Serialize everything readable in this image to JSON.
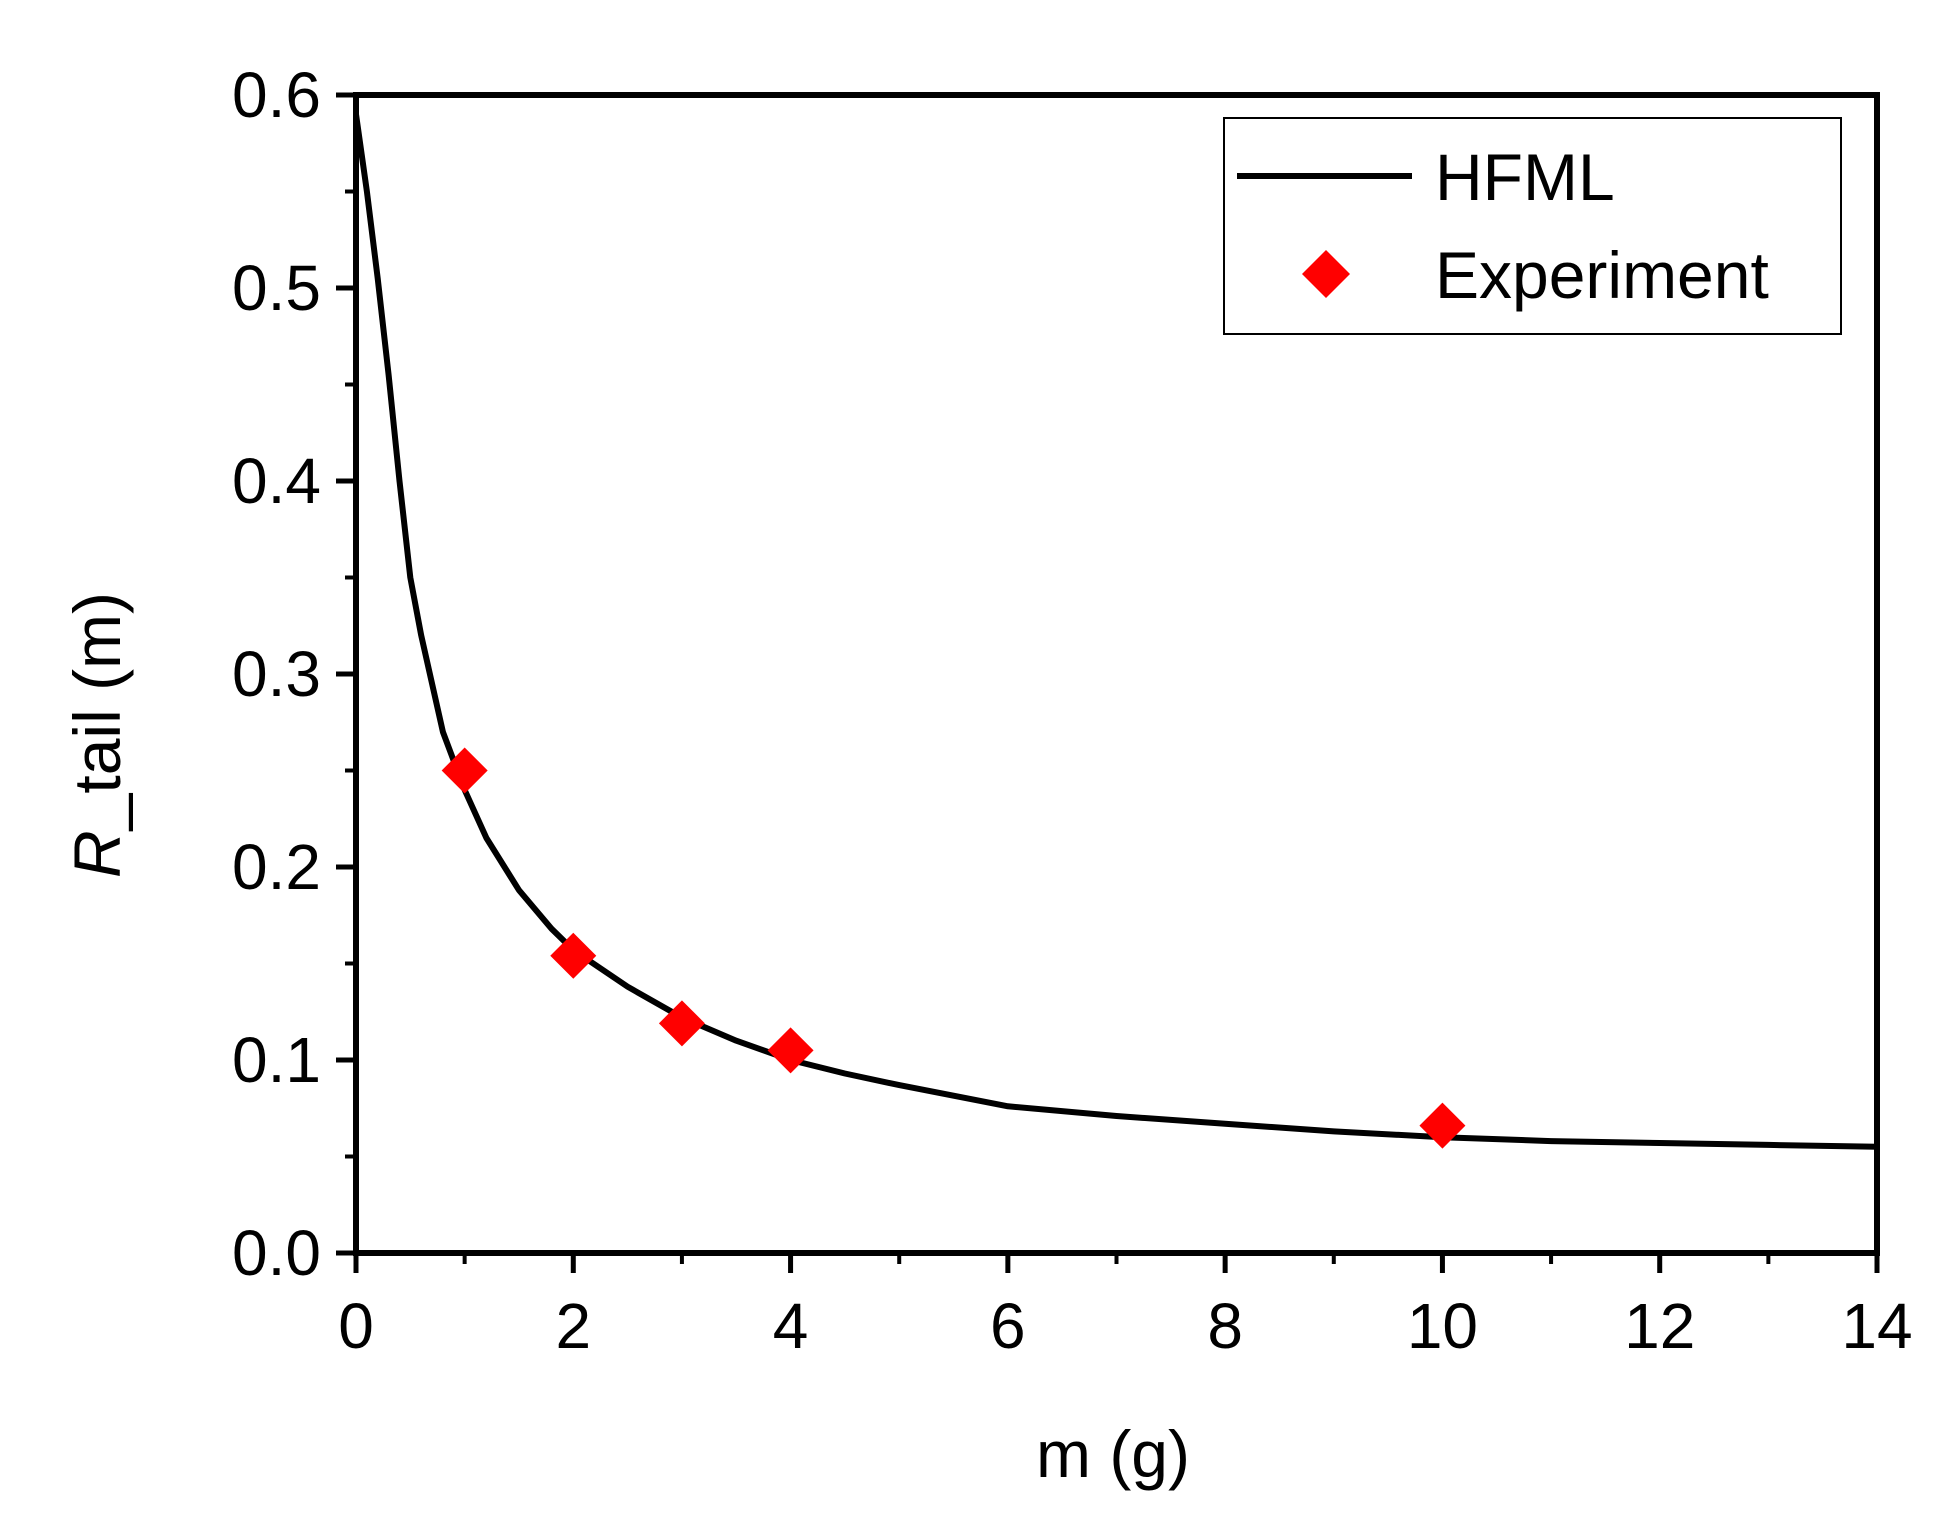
{
  "chart_data": {
    "type": "line",
    "xlabel": "m (g)",
    "ylabel_italic": "R",
    "ylabel_rest": "_tail (m)",
    "xlim": [
      0,
      14
    ],
    "ylim": [
      0.0,
      0.6
    ],
    "x_ticks": [
      0,
      2,
      4,
      6,
      8,
      10,
      12,
      14
    ],
    "y_ticks": [
      0.0,
      0.1,
      0.2,
      0.3,
      0.4,
      0.5,
      0.6
    ],
    "x_tick_labels": [
      "0",
      "2",
      "4",
      "6",
      "8",
      "10",
      "12",
      "14"
    ],
    "y_tick_labels": [
      "0.0",
      "0.1",
      "0.2",
      "0.3",
      "0.4",
      "0.5",
      "0.6"
    ],
    "grid": false,
    "legend_position": "top-right",
    "series": [
      {
        "name": "HFML",
        "kind": "line",
        "color": "#000000",
        "x": [
          0.0,
          0.1,
          0.2,
          0.3,
          0.4,
          0.5,
          0.6,
          0.8,
          1.0,
          1.2,
          1.5,
          1.8,
          2.0,
          2.5,
          3.0,
          3.5,
          4.0,
          4.5,
          5.0,
          6.0,
          7.0,
          8.0,
          9.0,
          10.0,
          11.0,
          12.0,
          13.0,
          14.0
        ],
        "y": [
          0.59,
          0.55,
          0.505,
          0.455,
          0.4,
          0.35,
          0.32,
          0.27,
          0.24,
          0.215,
          0.188,
          0.168,
          0.157,
          0.138,
          0.122,
          0.11,
          0.1,
          0.093,
          0.087,
          0.076,
          0.071,
          0.067,
          0.063,
          0.06,
          0.058,
          0.057,
          0.056,
          0.055
        ]
      },
      {
        "name": "Experiment",
        "kind": "scatter",
        "marker": "diamond",
        "color": "#ff0000",
        "x": [
          1,
          2,
          3,
          4,
          10
        ],
        "y": [
          0.25,
          0.154,
          0.119,
          0.105,
          0.066
        ]
      }
    ]
  }
}
